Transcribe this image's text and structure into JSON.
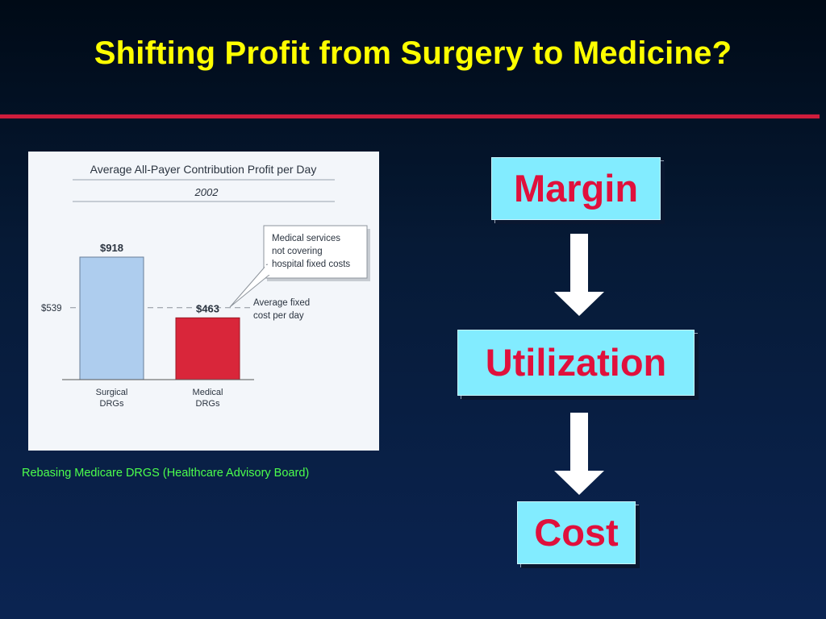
{
  "slide": {
    "title": "Shifting Profit from Surgery to Medicine?",
    "caption": "Rebasing Medicare DRGS (Healthcare Advisory Board)"
  },
  "flow": {
    "items": [
      "Margin",
      "Utilization",
      "Cost"
    ]
  },
  "colors": {
    "title": "#ffff00",
    "rule": "#d01c3c",
    "box_fill": "#82ecff",
    "box_text": "#e0103c",
    "caption": "#4cff4c",
    "surgical_bar": "#aecdee",
    "medical_bar": "#d9263a"
  },
  "chart_data": {
    "type": "bar",
    "title": "Average All-Payer Contribution Profit per Day",
    "subtitle": "2002",
    "categories": [
      "Surgical DRGs",
      "Medical DRGs"
    ],
    "category_lines": [
      [
        "Surgical",
        "DRGs"
      ],
      [
        "Medical",
        "DRGs"
      ]
    ],
    "values": [
      918,
      463
    ],
    "value_labels": [
      "$918",
      "$463"
    ],
    "reference_line": {
      "value": 539,
      "label": "$539",
      "annotation": [
        "Average fixed",
        "cost per day"
      ]
    },
    "callout": [
      "Medical services",
      "not covering",
      "hospital fixed costs"
    ],
    "ylim": [
      0,
      1000
    ],
    "grid": false,
    "legend": "none"
  }
}
